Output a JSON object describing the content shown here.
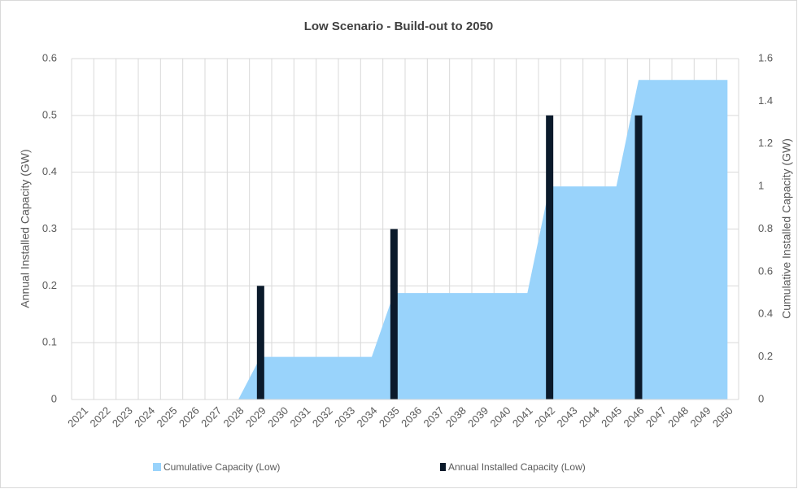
{
  "chart_data": {
    "type": "bar-area",
    "title": "Low Scenario - Build-out to 2050",
    "categories": [
      "2021",
      "2022",
      "2023",
      "2024",
      "2025",
      "2026",
      "2027",
      "2028",
      "2029",
      "2030",
      "2031",
      "2032",
      "2033",
      "2034",
      "2035",
      "2036",
      "2037",
      "2038",
      "2039",
      "2040",
      "2041",
      "2042",
      "2043",
      "2044",
      "2045",
      "2046",
      "2047",
      "2048",
      "2049",
      "2050"
    ],
    "series": [
      {
        "name": "Cumulative Capacity (Low)",
        "color": "#99d3fb",
        "axis": "y2",
        "kind": "area",
        "values": [
          0,
          0,
          0,
          0,
          0,
          0,
          0,
          0,
          0.2,
          0.2,
          0.2,
          0.2,
          0.2,
          0.2,
          0.5,
          0.5,
          0.5,
          0.5,
          0.5,
          0.5,
          0.5,
          1,
          1,
          1,
          1,
          1.5,
          1.5,
          1.5,
          1.5,
          1.5
        ]
      },
      {
        "name": "Annual Installed Capacity (Low)",
        "color": "#0b1a2b",
        "kind": "bar",
        "values": [
          0,
          0,
          0,
          0,
          0,
          0,
          0,
          0,
          0.2,
          0,
          0,
          0,
          0,
          0,
          0.3,
          0,
          0,
          0,
          0,
          0,
          0,
          0.5,
          0,
          0,
          0,
          0.5,
          0,
          0,
          0,
          0
        ]
      }
    ],
    "y_label": "Annual Installed Capacity (GW)",
    "y2_label": "Cumulative Installed Capacity (GW)",
    "ylim": [
      0,
      0.6
    ],
    "yticks": [
      0,
      0.1,
      0.2,
      0.3,
      0.4,
      0.5,
      0.6
    ],
    "y2lim": [
      0,
      1.6
    ],
    "y2ticks": [
      0,
      0.2,
      0.4,
      0.6,
      0.8,
      1,
      1.2,
      1.4,
      1.6
    ],
    "grid": true,
    "legend": "bottom"
  }
}
